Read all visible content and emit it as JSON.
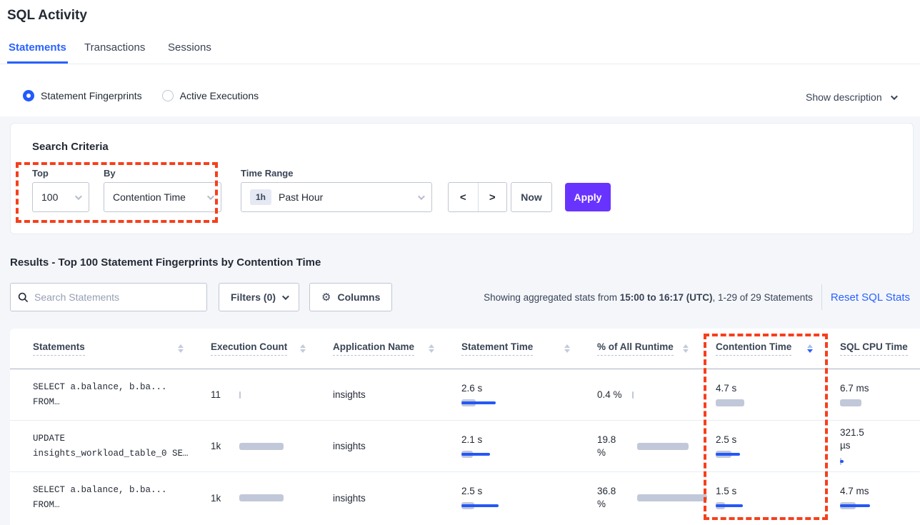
{
  "page": {
    "title": "SQL Activity"
  },
  "tabs": [
    {
      "label": "Statements",
      "active": true
    },
    {
      "label": "Transactions",
      "active": false
    },
    {
      "label": "Sessions",
      "active": false
    }
  ],
  "view_toggle": {
    "options": [
      {
        "label": "Statement Fingerprints",
        "selected": true
      },
      {
        "label": "Active Executions",
        "selected": false
      }
    ],
    "show_description_label": "Show description"
  },
  "search_criteria": {
    "heading": "Search Criteria",
    "top": {
      "label": "Top",
      "value": "100"
    },
    "by": {
      "label": "By",
      "value": "Contention Time"
    },
    "time_range": {
      "label": "Time Range",
      "badge": "1h",
      "value": "Past Hour"
    },
    "prev_label": "<",
    "next_label": ">",
    "now_label": "Now",
    "apply_label": "Apply"
  },
  "results": {
    "heading": "Results - Top 100 Statement Fingerprints by Contention Time",
    "search_placeholder": "Search Statements",
    "filters_label": "Filters (0)",
    "columns_label": "Columns",
    "gear_glyph": "⚙",
    "stats_prefix": "Showing aggregated stats from ",
    "stats_bold": "15:00 to 16:17 (UTC)",
    "stats_suffix": ", 1-29 of 29 Statements",
    "reset_label": "Reset SQL Stats"
  },
  "table": {
    "columns": [
      "Statements",
      "Execution Count",
      "Application Name",
      "Statement Time",
      "% of All Runtime",
      "Contention Time",
      "SQL CPU Time"
    ],
    "sorted_column": "Contention Time",
    "sort_direction": "desc",
    "rows": [
      {
        "statement_line1": "SELECT a.balance, b.ba...",
        "statement_line2": "FROM…",
        "execution_count": "11",
        "application_name": "insights",
        "statement_time": "2.6 s",
        "runtime_pct": "0.4 %",
        "contention_time": "4.7 s",
        "sql_cpu_time": "6.7 ms",
        "bars": {
          "exec": {
            "gray": 2,
            "blue": 0
          },
          "stmt": {
            "gray": 20,
            "blue": 48
          },
          "runtime": {
            "gray": 2,
            "blue": 0
          },
          "contention": {
            "gray": 40,
            "blue": 0
          },
          "cpu": {
            "gray": 30,
            "blue": 0
          }
        }
      },
      {
        "statement_line1": "UPDATE",
        "statement_line2": "insights_workload_table_0 SE…",
        "execution_count": "1k",
        "application_name": "insights",
        "statement_time": "2.1 s",
        "runtime_pct": "19.8 %",
        "contention_time": "2.5 s",
        "sql_cpu_time": "321.5 µs",
        "bars": {
          "exec": {
            "gray": 62,
            "blue": 0
          },
          "stmt": {
            "gray": 16,
            "blue": 40
          },
          "runtime": {
            "gray": 72,
            "blue": 0
          },
          "contention": {
            "gray": 22,
            "blue": 34
          },
          "cpu": {
            "gray": 2,
            "blue": 5
          }
        }
      },
      {
        "statement_line1": "SELECT a.balance, b.ba...",
        "statement_line2": "FROM…",
        "execution_count": "1k",
        "application_name": "insights",
        "statement_time": "2.5 s",
        "runtime_pct": "36.8 %",
        "contention_time": "1.5 s",
        "sql_cpu_time": "4.7 ms",
        "bars": {
          "exec": {
            "gray": 62,
            "blue": 0
          },
          "stmt": {
            "gray": 18,
            "blue": 52
          },
          "runtime": {
            "gray": 98,
            "blue": 0
          },
          "contention": {
            "gray": 13,
            "blue": 38
          },
          "cpu": {
            "gray": 22,
            "blue": 42
          }
        }
      }
    ]
  },
  "colors": {
    "accent_blue": "#2962ff",
    "apply_purple": "#6933ff",
    "bar_gray": "#c1c8d9",
    "bar_blue": "#2458f5",
    "annotation_red": "#f63f1c",
    "link_blue": "#2962ff"
  }
}
